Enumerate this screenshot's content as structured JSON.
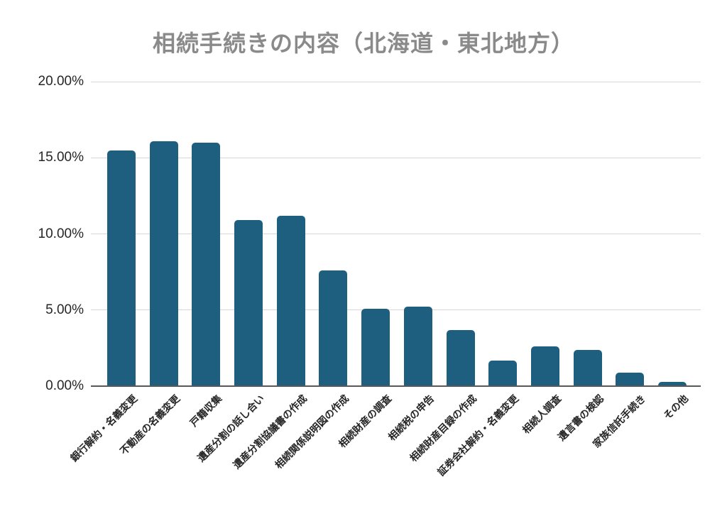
{
  "title": "相続手続きの内容（北海道・東北地方）",
  "chart_data": {
    "type": "bar",
    "title": "相続手続きの内容（北海道・東北地方）",
    "categories": [
      "銀行解約・名義変更",
      "不動産の名義変更",
      "戸籍収集",
      "遺産分割の話し合い",
      "遺産分割協議書の作成",
      "相続関係説明図の作成",
      "相続財産の調査",
      "相続税の申告",
      "相続財産目録の作成",
      "証券会社解約・名義変更",
      "相続人調査",
      "遺言書の検認",
      "家族信託手続き",
      "その他"
    ],
    "values": [
      15.5,
      16.1,
      16.0,
      10.9,
      11.2,
      7.6,
      5.1,
      5.2,
      3.7,
      1.7,
      2.6,
      2.4,
      0.9,
      0.3
    ],
    "unit": "%",
    "xlabel": "",
    "ylabel": "",
    "ylim": [
      0,
      20
    ],
    "yticks": [
      {
        "value": 0,
        "label": "0.00%"
      },
      {
        "value": 5,
        "label": "5.00%"
      },
      {
        "value": 10,
        "label": "10.00%"
      },
      {
        "value": 15,
        "label": "15.00%"
      },
      {
        "value": 20,
        "label": "20.00%"
      }
    ],
    "grid": true,
    "legend": false,
    "colors": {
      "bar": "#1e5e7e",
      "gridline": "#d6d6d6",
      "axis_line": "#595959",
      "title_text": "#8a8a8a",
      "tick_text": "#262626",
      "background": "#ffffff"
    }
  }
}
